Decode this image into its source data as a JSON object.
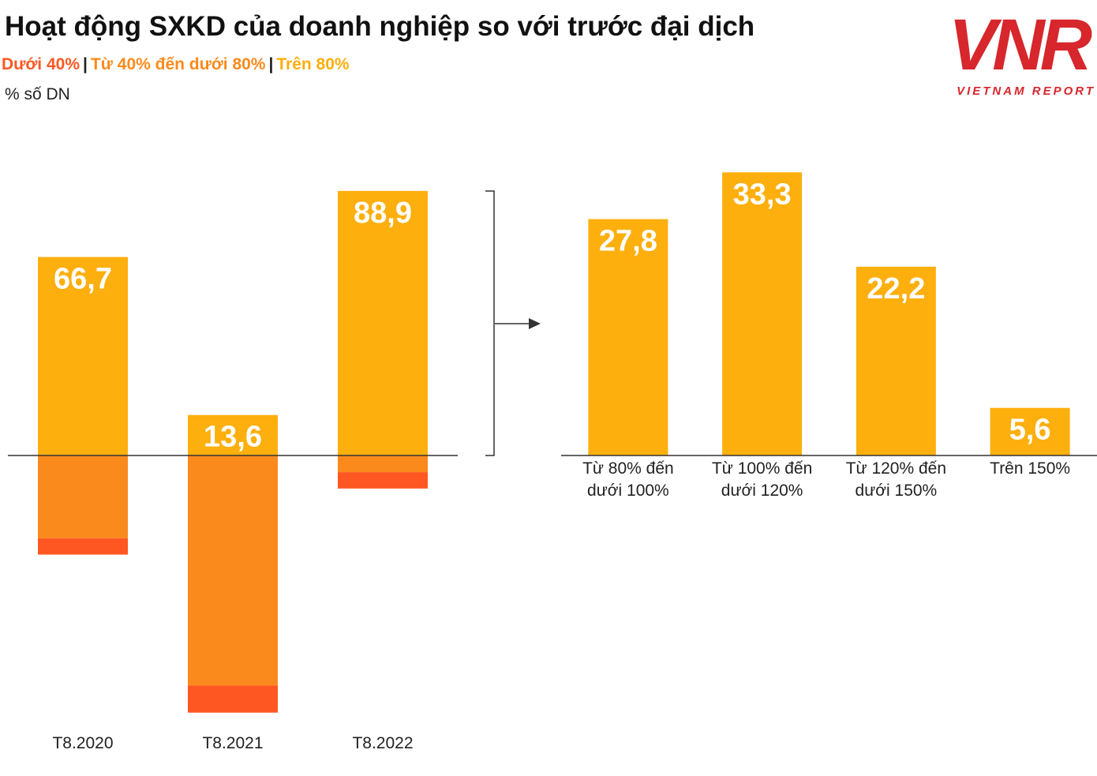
{
  "title": "Hoạt động SXKD của doanh nghiệp so với trước đại dịch",
  "unit_label": "% số DN",
  "logo": {
    "mark": "VNR",
    "tagline": "VIETNAM REPORT"
  },
  "chart_data": [
    {
      "type": "stacked_bar",
      "categories": [
        "T8.2020",
        "T8.2021",
        "T8.2022"
      ],
      "legend_separator": "|",
      "series": [
        {
          "name": "Dưới 40%",
          "color": "#ff5722",
          "values": [
            -5.5,
            -9.1,
            -5.5
          ]
        },
        {
          "name": "Từ 40% đến dưới 80%",
          "color": "#fb8a1c",
          "values": [
            -27.8,
            -77.3,
            -5.6
          ]
        },
        {
          "name": "Trên 80%",
          "color": "#fdaf0e",
          "values": [
            66.7,
            13.6,
            88.9
          ],
          "value_labels": [
            "66,7",
            "13,6",
            "88,9"
          ]
        }
      ],
      "ylim": [
        -100,
        100
      ]
    },
    {
      "type": "bar",
      "categories": [
        "Từ 80% đến dưới 100%",
        "Từ 100% đến dưới 120%",
        "Từ 120% đến dưới 150%",
        "Trên 150%"
      ],
      "values": [
        27.8,
        33.3,
        22.2,
        5.6
      ],
      "value_labels": [
        "27,8",
        "33,3",
        "22,2",
        "5,6"
      ],
      "color": "#fdaf0e",
      "ylim": [
        0,
        35
      ]
    }
  ]
}
